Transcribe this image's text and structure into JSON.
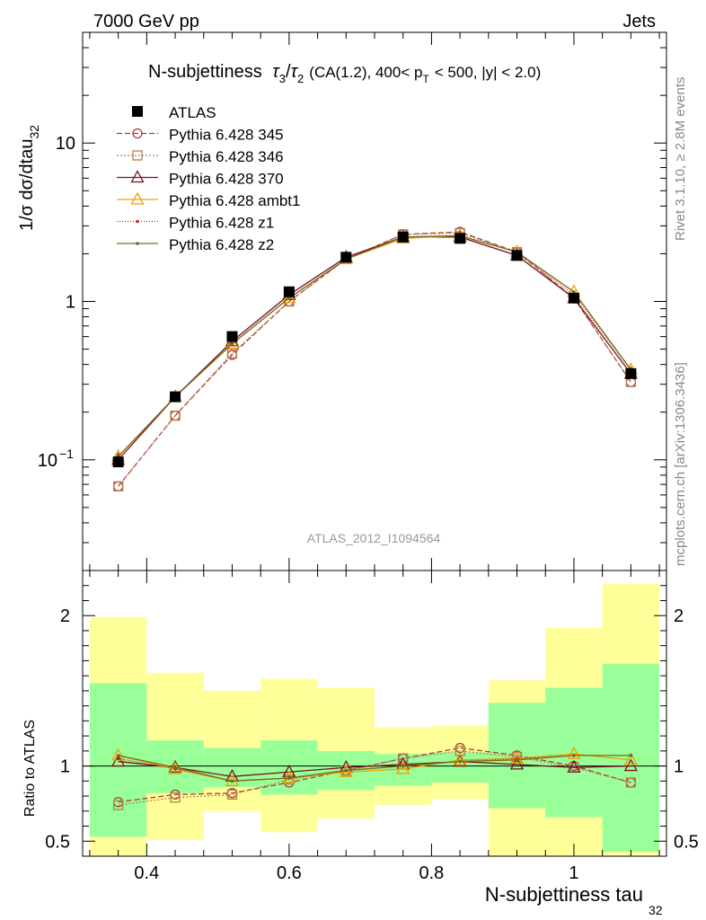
{
  "header": {
    "left": "7000 GeV pp",
    "right": "Jets"
  },
  "side_labels": {
    "rivet": "Rivet 3.1.10, ≥ 2.8M events",
    "mcplots": "mcplots.cern.ch [arXiv:1306.3436]"
  },
  "chart_data": {
    "type": "line",
    "title": "N-subjettiness τ₃/τ₂ (CA(1.2), 400< p_T < 500, |y| < 2.0)",
    "title_parts": {
      "main": "N-subjettiness",
      "tau3": "τ",
      "sub3": "3",
      "slash": "/",
      "tau2": "τ",
      "sub2": "2",
      "cut1": "(CA(1.2), 400< p",
      "subT": "T",
      "cut2": "< 500, |y| < 2.0)"
    },
    "analysis_id": "ATLAS_2012_I1094564",
    "xlabel": "N-subjettiness tau",
    "xlabel_sub": "32",
    "ylabel": "1/σ dσ/dtau",
    "ylabel_sub": "32",
    "ratio_ylabel": "Ratio to ATLAS",
    "xlim": [
      0.31,
      1.13
    ],
    "ylim": [
      0.02,
      50
    ],
    "ylog": true,
    "ratio_ylim": [
      0.4,
      2.3
    ],
    "x_ticks": [
      0.4,
      0.6,
      0.8,
      1
    ],
    "x_tick_labels": [
      "0.4",
      "0.6",
      "0.8",
      "1"
    ],
    "y_ticks": [
      0.1,
      1,
      10
    ],
    "y_tick_labels": [
      {
        "base": "10",
        "exp": "−1"
      },
      {
        "base": "1",
        "exp": ""
      },
      {
        "base": "10",
        "exp": ""
      }
    ],
    "ratio_ticks": [
      0.5,
      1,
      2
    ],
    "ratio_tick_labels": [
      "0.5",
      "1",
      "2"
    ],
    "bins": [
      [
        0.32,
        0.4
      ],
      [
        0.4,
        0.48
      ],
      [
        0.48,
        0.56
      ],
      [
        0.56,
        0.64
      ],
      [
        0.64,
        0.72
      ],
      [
        0.72,
        0.8
      ],
      [
        0.8,
        0.88
      ],
      [
        0.88,
        0.96
      ],
      [
        0.96,
        1.04
      ],
      [
        1.04,
        1.12
      ]
    ],
    "x": [
      0.36,
      0.44,
      0.52,
      0.6,
      0.68,
      0.76,
      0.84,
      0.92,
      1.0,
      1.08
    ],
    "data": {
      "name": "ATLAS",
      "values": [
        0.097,
        0.25,
        0.6,
        1.15,
        1.9,
        2.55,
        2.5,
        1.95,
        1.05,
        0.35
      ]
    },
    "band_inner": [
      [
        0.53,
        1.55
      ],
      [
        0.82,
        1.17
      ],
      [
        0.86,
        1.12
      ],
      [
        0.81,
        1.17
      ],
      [
        0.84,
        1.1
      ],
      [
        0.87,
        1.08
      ],
      [
        0.89,
        1.09
      ],
      [
        0.72,
        1.42
      ],
      [
        0.66,
        1.52
      ],
      [
        0.43,
        1.68
      ]
    ],
    "band_outer": [
      [
        0.35,
        1.99
      ],
      [
        0.51,
        1.62
      ],
      [
        0.7,
        1.5
      ],
      [
        0.56,
        1.58
      ],
      [
        0.65,
        1.52
      ],
      [
        0.74,
        1.26
      ],
      [
        0.78,
        1.27
      ],
      [
        0.35,
        1.57
      ],
      [
        0.35,
        1.92
      ],
      [
        0.35,
        2.21
      ]
    ],
    "series": [
      {
        "name": "Pythia 6.428 345",
        "color": "#b03a3a",
        "dash": "6,3",
        "marker": "circle-open",
        "values": [
          0.068,
          0.19,
          0.46,
          1.0,
          1.85,
          2.65,
          2.75,
          2.05,
          1.05,
          0.31
        ],
        "ratio": [
          0.76,
          0.81,
          0.82,
          0.89,
          0.97,
          1.05,
          1.12,
          1.07,
          1.0,
          0.89
        ]
      },
      {
        "name": "Pythia 6.428 346",
        "color": "#b08050",
        "dash": "2,2",
        "marker": "square-open",
        "values": [
          0.068,
          0.19,
          0.47,
          1.0,
          1.85,
          2.65,
          2.7,
          2.05,
          1.05,
          0.31
        ],
        "ratio": [
          0.74,
          0.79,
          0.81,
          0.91,
          0.97,
          1.05,
          1.1,
          1.06,
          0.99,
          0.89
        ]
      },
      {
        "name": "Pythia 6.428 370",
        "color": "#7a1020",
        "dash": "",
        "marker": "triangle-open",
        "values": [
          0.1,
          0.25,
          0.56,
          1.1,
          1.9,
          2.55,
          2.55,
          1.95,
          1.05,
          0.35
        ],
        "ratio": [
          1.03,
          0.99,
          0.93,
          0.96,
          0.99,
          1.01,
          1.03,
          1.01,
          0.99,
          1.0
        ]
      },
      {
        "name": "Pythia 6.428 ambt1",
        "color": "#f0a000",
        "dash": "",
        "marker": "triangle-open",
        "values": [
          0.105,
          0.25,
          0.54,
          1.05,
          1.85,
          2.5,
          2.6,
          2.05,
          1.15,
          0.37
        ],
        "ratio": [
          1.07,
          0.98,
          0.9,
          0.92,
          0.96,
          0.98,
          1.04,
          1.05,
          1.08,
          1.04
        ]
      },
      {
        "name": "Pythia 6.428 z1",
        "color": "#cc2020",
        "dash": "1,2",
        "marker": "dot",
        "values": [
          0.1,
          0.25,
          0.54,
          1.05,
          1.85,
          2.55,
          2.6,
          2.05,
          1.1,
          0.37
        ],
        "ratio": [
          1.05,
          0.98,
          0.9,
          0.92,
          0.97,
          1.0,
          1.03,
          1.05,
          1.07,
          1.07
        ]
      },
      {
        "name": "Pythia 6.428 z2",
        "color": "#707020",
        "dash": "",
        "marker": "dot",
        "values": [
          0.105,
          0.25,
          0.54,
          1.05,
          1.85,
          2.55,
          2.6,
          2.05,
          1.15,
          0.37
        ],
        "ratio": [
          1.07,
          0.99,
          0.9,
          0.92,
          0.97,
          1.0,
          1.03,
          1.04,
          1.07,
          1.07
        ]
      }
    ],
    "colors": {
      "band_inner": "#99ff99",
      "band_outer": "#ffff99"
    },
    "legend_position": "top-left"
  }
}
